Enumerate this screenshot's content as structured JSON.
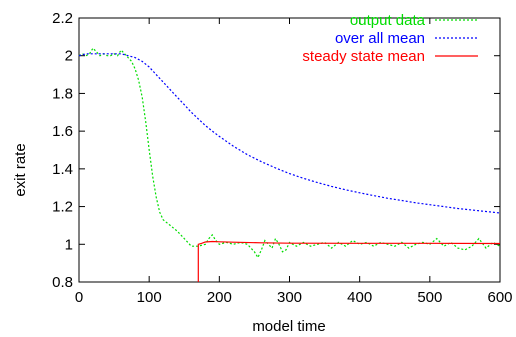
{
  "chart_data": {
    "type": "line",
    "xlabel": "model time",
    "ylabel": "exit rate",
    "xlim": [
      0,
      600
    ],
    "ylim": [
      0.8,
      2.2
    ],
    "x_ticks": [
      0,
      100,
      200,
      300,
      400,
      500,
      600
    ],
    "y_ticks": [
      0.8,
      1,
      1.2,
      1.4,
      1.6,
      1.8,
      2,
      2.2
    ],
    "x_tick_labels": [
      "0",
      "100",
      "200",
      "300",
      "400",
      "500",
      "600"
    ],
    "y_tick_labels": [
      "0.8",
      "1",
      "1.2",
      "1.4",
      "1.6",
      "1.8",
      "2",
      "2.2"
    ],
    "grid": false,
    "legend_position": "top-right",
    "series": [
      {
        "name": "output data",
        "color": "#00dd00",
        "dash": "dotted",
        "x": [
          0,
          5,
          10,
          15,
          20,
          25,
          30,
          35,
          40,
          45,
          50,
          55,
          60,
          65,
          70,
          75,
          80,
          85,
          90,
          95,
          100,
          105,
          110,
          115,
          120,
          130,
          140,
          150,
          160,
          170,
          180,
          185,
          190,
          195,
          200,
          210,
          220,
          230,
          240,
          250,
          255,
          260,
          265,
          270,
          275,
          280,
          285,
          290,
          295,
          300,
          310,
          320,
          330,
          340,
          350,
          360,
          370,
          380,
          390,
          400,
          410,
          420,
          430,
          440,
          450,
          460,
          470,
          480,
          490,
          500,
          510,
          520,
          530,
          540,
          550,
          560,
          570,
          580,
          590,
          600
        ],
        "y": [
          2.0,
          2.01,
          2.0,
          2.01,
          2.04,
          2.02,
          2.0,
          2.01,
          2.0,
          2.0,
          2.01,
          2.0,
          2.03,
          2.01,
          1.99,
          1.97,
          1.93,
          1.87,
          1.78,
          1.65,
          1.5,
          1.36,
          1.25,
          1.17,
          1.13,
          1.1,
          1.07,
          1.03,
          0.99,
          0.99,
          1.0,
          1.03,
          1.05,
          1.02,
          1.0,
          1.01,
          1.0,
          1.01,
          1.0,
          0.96,
          0.93,
          0.97,
          1.02,
          1.0,
          0.98,
          1.03,
          1.0,
          0.96,
          0.97,
          1.01,
          0.99,
          1.01,
          0.99,
          1.0,
          1.01,
          0.98,
          1.01,
          0.99,
          1.02,
          1.0,
          1.01,
          0.99,
          1.01,
          1.0,
          0.99,
          1.01,
          0.98,
          1.0,
          1.01,
          1.0,
          1.03,
          0.99,
          1.01,
          0.98,
          0.97,
          0.99,
          1.03,
          0.98,
          1.01,
          0.99
        ]
      },
      {
        "name": "over all mean",
        "color": "#0000ff",
        "dash": "dotted",
        "x": [
          0,
          10,
          20,
          30,
          40,
          50,
          60,
          70,
          80,
          90,
          100,
          110,
          120,
          130,
          140,
          150,
          160,
          170,
          180,
          190,
          200,
          220,
          240,
          260,
          280,
          300,
          320,
          340,
          360,
          380,
          400,
          420,
          440,
          460,
          480,
          500,
          520,
          540,
          560,
          580,
          600
        ],
        "y": [
          2.0,
          2.01,
          2.01,
          2.01,
          2.01,
          2.01,
          2.01,
          2.0,
          1.99,
          1.97,
          1.94,
          1.9,
          1.86,
          1.82,
          1.78,
          1.74,
          1.7,
          1.665,
          1.63,
          1.6,
          1.572,
          1.52,
          1.475,
          1.438,
          1.405,
          1.375,
          1.35,
          1.327,
          1.307,
          1.289,
          1.273,
          1.258,
          1.244,
          1.232,
          1.22,
          1.21,
          1.2,
          1.19,
          1.182,
          1.174,
          1.166
        ]
      },
      {
        "name": "steady state mean",
        "color": "#ff0000",
        "dash": "solid",
        "x": [
          170,
          170,
          175,
          180,
          190,
          200,
          220,
          260,
          300,
          400,
          500,
          600
        ],
        "y": [
          0.8,
          1.0,
          1.005,
          1.012,
          1.015,
          1.013,
          1.011,
          1.008,
          1.006,
          1.005,
          1.005,
          1.004
        ]
      }
    ]
  }
}
